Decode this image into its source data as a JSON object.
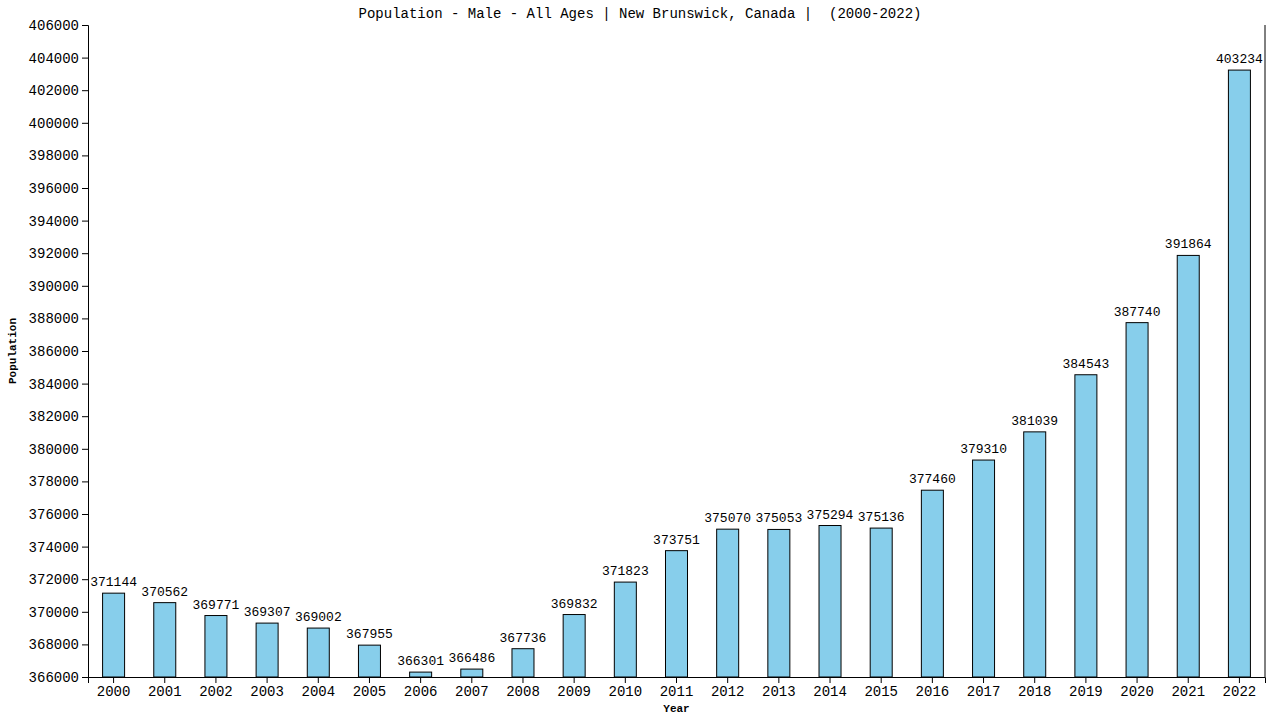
{
  "chart_data": {
    "type": "bar",
    "title": "Population - Male - All Ages | New Brunswick, Canada |  (2000-2022)",
    "x_label": "Year",
    "y_label": "Population",
    "categories": [
      "2000",
      "2001",
      "2002",
      "2003",
      "2004",
      "2005",
      "2006",
      "2007",
      "2008",
      "2009",
      "2010",
      "2011",
      "2012",
      "2013",
      "2014",
      "2015",
      "2016",
      "2017",
      "2018",
      "2019",
      "2020",
      "2021",
      "2022"
    ],
    "values": [
      371144,
      370562,
      369771,
      369307,
      369002,
      367955,
      366301,
      366486,
      367736,
      369832,
      371823,
      373751,
      375070,
      375053,
      375294,
      375136,
      377460,
      379310,
      381039,
      384543,
      387740,
      391864,
      403234
    ],
    "color": "#87ceeb",
    "ylim": [
      366000,
      406000
    ],
    "yticks": [
      366000,
      368000,
      370000,
      372000,
      374000,
      376000,
      378000,
      380000,
      382000,
      384000,
      386000,
      388000,
      390000,
      392000,
      394000,
      396000,
      398000,
      400000,
      402000,
      404000,
      406000
    ],
    "grid": false,
    "data_labels": true
  }
}
